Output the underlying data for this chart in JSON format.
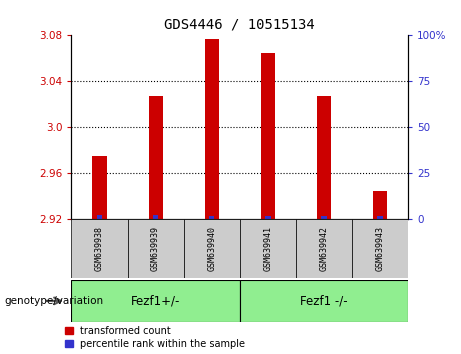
{
  "title": "GDS4446 / 10515134",
  "samples": [
    "GSM639938",
    "GSM639939",
    "GSM639940",
    "GSM639941",
    "GSM639942",
    "GSM639943"
  ],
  "red_values": [
    2.975,
    3.027,
    3.077,
    3.065,
    3.027,
    2.945
  ],
  "blue_heights": [
    0.004,
    0.004,
    0.003,
    0.003,
    0.003,
    0.003
  ],
  "ymin": 2.92,
  "ymax": 3.08,
  "yticks_left": [
    2.92,
    2.96,
    3.0,
    3.04,
    3.08
  ],
  "yticks_right_labels": [
    "0",
    "25",
    "50",
    "75",
    "100%"
  ],
  "yticks_right_vals": [
    2.92,
    2.96,
    3.0,
    3.04,
    3.08
  ],
  "grid_vals": [
    2.96,
    3.0,
    3.04
  ],
  "group1_label": "Fezf1+/-",
  "group2_label": "Fezf1 -/-",
  "bar_color_red": "#cc0000",
  "bar_color_blue": "#3333cc",
  "group_bg_color": "#90ee90",
  "sample_bg_color": "#cccccc",
  "legend_red_label": "transformed count",
  "legend_blue_label": "percentile rank within the sample",
  "bar_width": 0.25,
  "blue_bar_width": 0.1,
  "genotype_label": "genotype/variation"
}
